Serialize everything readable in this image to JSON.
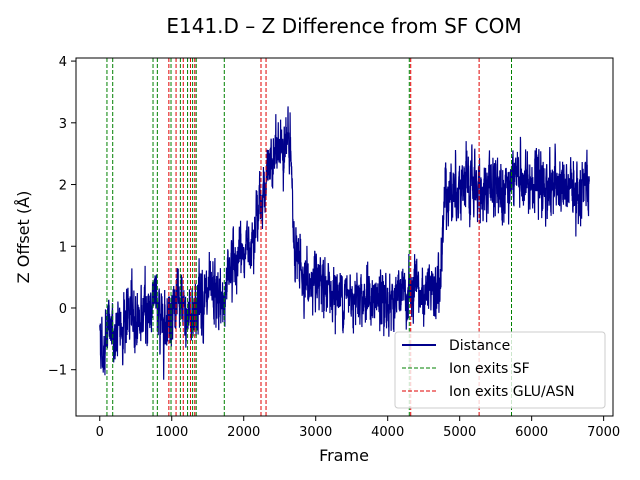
{
  "chart_data": {
    "type": "line",
    "title": "E141.D – Z Difference from SF COM",
    "xlabel": "Frame",
    "ylabel": "Z Offset (Å)",
    "xlim": [
      -330,
      7130
    ],
    "ylim": [
      -1.75,
      4.05
    ],
    "xticks": [
      0,
      1000,
      2000,
      3000,
      4000,
      5000,
      6000,
      7000
    ],
    "yticks": [
      -1,
      0,
      1,
      2,
      3,
      4
    ],
    "xtick_labels": [
      "0",
      "1000",
      "2000",
      "3000",
      "4000",
      "5000",
      "6000",
      "7000"
    ],
    "ytick_labels": [
      "−1",
      "0",
      "1",
      "2",
      "3",
      "4"
    ],
    "grid": false,
    "legend_position": "lower-right",
    "series": [
      {
        "name": "Distance",
        "color": "#00008b",
        "profile": [
          [
            0,
            -0.3
          ],
          [
            50,
            -0.8
          ],
          [
            100,
            -0.2
          ],
          [
            200,
            -0.5
          ],
          [
            300,
            -0.3
          ],
          [
            400,
            -0.1
          ],
          [
            500,
            -0.2
          ],
          [
            600,
            -0.1
          ],
          [
            700,
            0.0
          ],
          [
            750,
            0.3
          ],
          [
            800,
            -0.1
          ],
          [
            900,
            -0.2
          ],
          [
            1000,
            0.0
          ],
          [
            1100,
            0.1
          ],
          [
            1200,
            -0.2
          ],
          [
            1300,
            0.0
          ],
          [
            1400,
            0.2
          ],
          [
            1500,
            0.1
          ],
          [
            1600,
            0.2
          ],
          [
            1700,
            0.0
          ],
          [
            1800,
            0.7
          ],
          [
            1900,
            0.8
          ],
          [
            2000,
            0.9
          ],
          [
            2100,
            1.1
          ],
          [
            2200,
            1.6
          ],
          [
            2300,
            2.0
          ],
          [
            2400,
            2.4
          ],
          [
            2500,
            2.6
          ],
          [
            2600,
            2.7
          ],
          [
            2650,
            2.5
          ],
          [
            2700,
            1.0
          ],
          [
            2800,
            0.6
          ],
          [
            2900,
            0.4
          ],
          [
            3000,
            0.3
          ],
          [
            3200,
            0.3
          ],
          [
            3400,
            0.2
          ],
          [
            3600,
            0.25
          ],
          [
            3800,
            0.1
          ],
          [
            4000,
            0.1
          ],
          [
            4200,
            0.2
          ],
          [
            4400,
            0.2
          ],
          [
            4600,
            0.2
          ],
          [
            4720,
            0.3
          ],
          [
            4800,
            1.9
          ],
          [
            5000,
            2.0
          ],
          [
            5200,
            1.9
          ],
          [
            5500,
            2.0
          ],
          [
            5800,
            2.1
          ],
          [
            6000,
            2.0
          ],
          [
            6200,
            2.0
          ],
          [
            6500,
            1.9
          ],
          [
            6800,
            2.0
          ]
        ],
        "noise_profile": [
          [
            0,
            0.35
          ],
          [
            1700,
            0.4
          ],
          [
            2100,
            0.3
          ],
          [
            2500,
            0.35
          ],
          [
            2700,
            0.35
          ],
          [
            3000,
            0.3
          ],
          [
            4000,
            0.35
          ],
          [
            4700,
            0.35
          ],
          [
            4800,
            0.4
          ],
          [
            6800,
            0.35
          ]
        ],
        "n_frames": 6800
      }
    ],
    "vlines": [
      {
        "name": "Ion exits SF",
        "color": "#008000",
        "x": [
          100,
          180,
          740,
          800,
          990,
          1120,
          1220,
          1290,
          1340,
          1730,
          4300,
          5720
        ]
      },
      {
        "name": "Ion exits GLU/ASN",
        "color": "#e00000",
        "x": [
          960,
          1060,
          1160,
          1260,
          1320,
          2240,
          2310,
          4320,
          5270
        ]
      }
    ]
  }
}
